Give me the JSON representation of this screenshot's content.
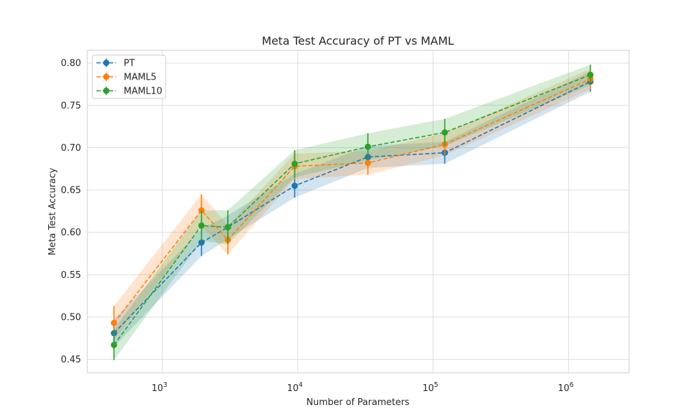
{
  "chart_data": {
    "type": "line",
    "title": "Meta Test Accuracy of PT vs MAML",
    "xlabel": "Number of Parameters",
    "ylabel": "Meta Test Accuracy",
    "xscale": "log",
    "xlim": [
      280,
      2800000
    ],
    "ylim": [
      0.434,
      0.815
    ],
    "grid": true,
    "legend_position": "top-left",
    "x": [
      440,
      1950,
      3050,
      9500,
      33000,
      122000,
      1450000
    ],
    "x_ticks": [
      {
        "value": 1000,
        "base": "10",
        "exp": "3"
      },
      {
        "value": 10000,
        "base": "10",
        "exp": "4"
      },
      {
        "value": 100000,
        "base": "10",
        "exp": "5"
      },
      {
        "value": 1000000,
        "base": "10",
        "exp": "6"
      }
    ],
    "y_ticks": [
      {
        "value": 0.45,
        "label": "0.45"
      },
      {
        "value": 0.5,
        "label": "0.50"
      },
      {
        "value": 0.55,
        "label": "0.55"
      },
      {
        "value": 0.6,
        "label": "0.60"
      },
      {
        "value": 0.65,
        "label": "0.65"
      },
      {
        "value": 0.7,
        "label": "0.70"
      },
      {
        "value": 0.75,
        "label": "0.75"
      },
      {
        "value": 0.8,
        "label": "0.80"
      }
    ],
    "series": [
      {
        "name": "PT",
        "color": "#1f77b4",
        "values": [
          0.481,
          0.588,
          0.606,
          0.655,
          0.689,
          0.694,
          0.778
        ],
        "errors": [
          0.016,
          0.016,
          0.014,
          0.014,
          0.013,
          0.013,
          0.012
        ]
      },
      {
        "name": "MAML5",
        "color": "#ff7f0e",
        "values": [
          0.493,
          0.626,
          0.591,
          0.678,
          0.682,
          0.704,
          0.781
        ],
        "errors": [
          0.02,
          0.019,
          0.017,
          0.015,
          0.014,
          0.013,
          0.012
        ]
      },
      {
        "name": "MAML10",
        "color": "#2ca02c",
        "values": [
          0.467,
          0.608,
          0.606,
          0.681,
          0.701,
          0.718,
          0.786
        ],
        "errors": [
          0.018,
          0.018,
          0.02,
          0.016,
          0.016,
          0.016,
          0.012
        ]
      }
    ]
  }
}
